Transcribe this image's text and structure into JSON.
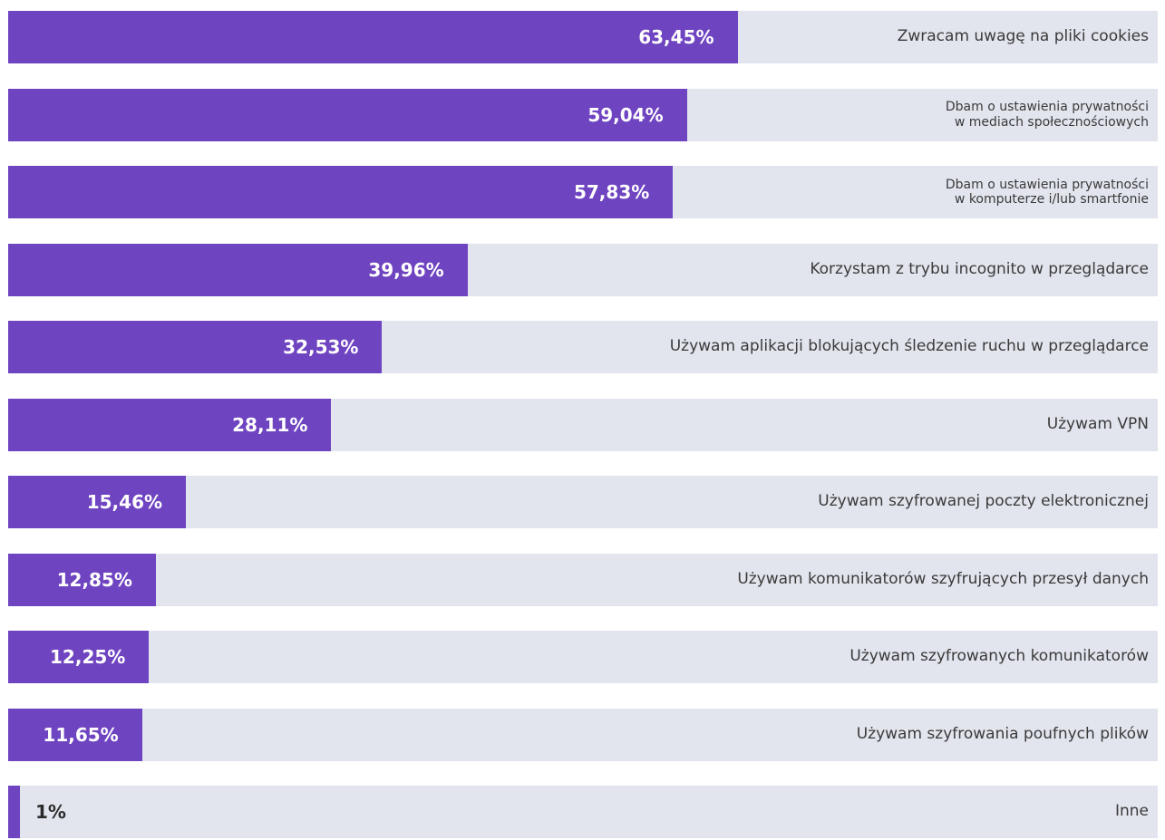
{
  "chart_data": {
    "type": "bar",
    "orientation": "horizontal",
    "color": "#6f44c1",
    "track_color": "#e2e5ee",
    "xlim": [
      0,
      100
    ],
    "categories": [
      "Zwracam uwagę na pliki cookies",
      "Dbam o ustawienia prywatności\nw mediach społecznościowych",
      "Dbam o ustawienia prywatności\nw komputerze i/lub smartfonie",
      "Korzystam z trybu incognito w przeglądarce",
      "Używam aplikacji blokujących śledzenie ruchu w przeglądarce",
      "Używam VPN",
      "Używam szyfrowanej poczty elektronicznej",
      "Używam komunikatorów szyfrujących przesył danych",
      "Używam szyfrowanych komunikatorów",
      "Używam szyfrowania poufnych plików",
      "Inne"
    ],
    "values": [
      63.45,
      59.04,
      57.83,
      39.96,
      32.53,
      28.11,
      15.46,
      12.85,
      12.25,
      11.65,
      1
    ],
    "value_labels": [
      "63,45%",
      "59,04%",
      "57,83%",
      "39,96%",
      "32,53%",
      "28,11%",
      "15,46%",
      "12,85%",
      "12,25%",
      "11,65%",
      "1%"
    ]
  }
}
